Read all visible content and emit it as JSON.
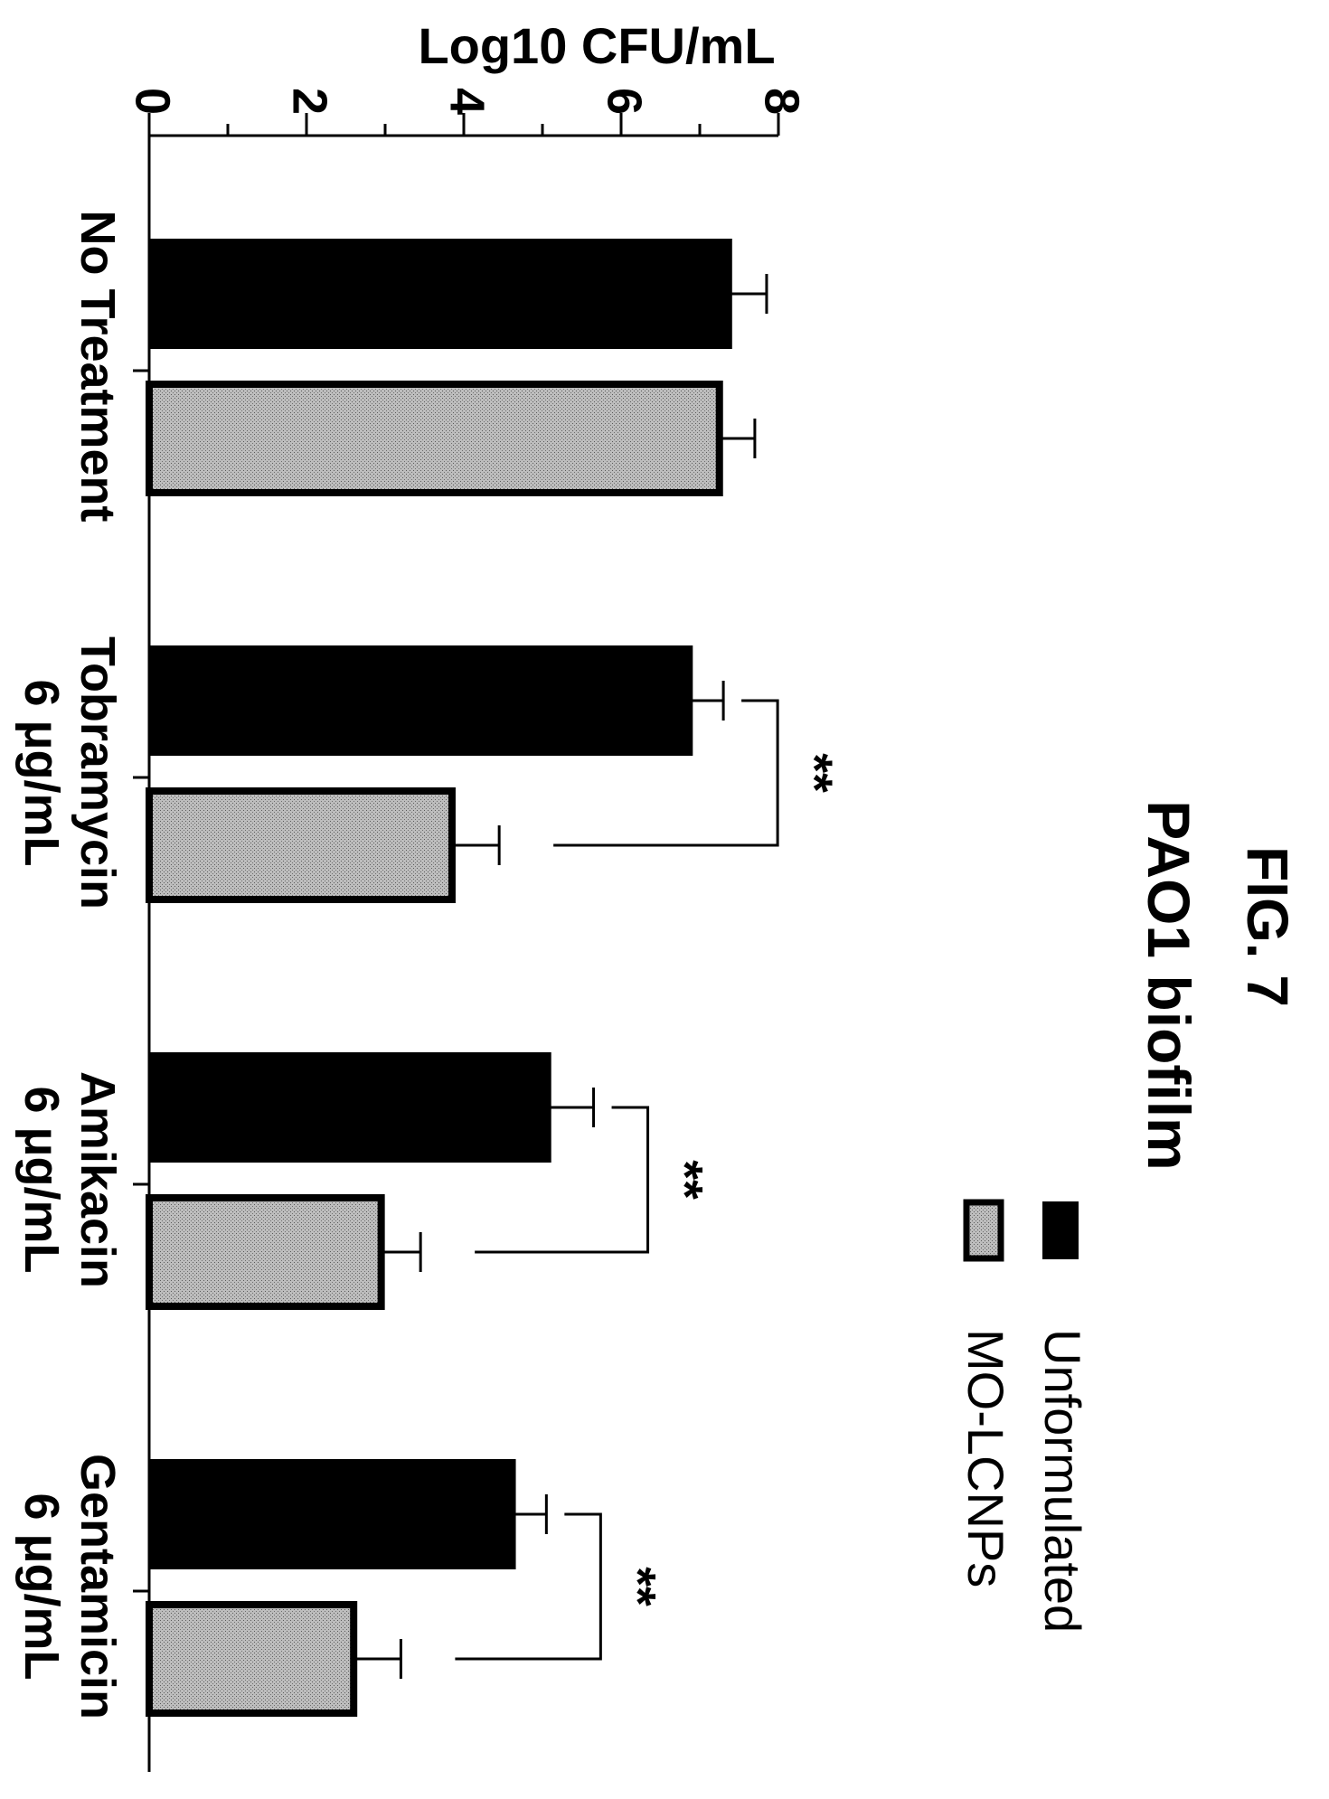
{
  "figure_label": "FIG. 7",
  "chart_data": {
    "type": "bar",
    "title": "PAO1 biofilm",
    "ylabel": "Log10 CFU/mL",
    "xlabel": "",
    "ylim": [
      0,
      8
    ],
    "yticks": [
      0,
      2,
      4,
      6,
      8
    ],
    "grid": false,
    "legend_position": "top-right",
    "categories": [
      [
        "No Treatment"
      ],
      [
        "Tobramycin",
        "6 μg/mL"
      ],
      [
        "Amikacin",
        "6 μg/mL"
      ],
      [
        "Gentamicin",
        "6 μg/mL"
      ]
    ],
    "series": [
      {
        "name": "Unformulated",
        "values": [
          7.4,
          6.9,
          5.1,
          4.65
        ],
        "errors": [
          0.45,
          0.4,
          0.55,
          0.4
        ],
        "color": "#000000",
        "pattern": "solid"
      },
      {
        "name": "MO-LCNPs",
        "values": [
          7.25,
          3.85,
          2.95,
          2.6
        ],
        "errors": [
          0.45,
          0.6,
          0.5,
          0.6
        ],
        "color": "#b0b0b0",
        "pattern": "stipple"
      }
    ],
    "significance": [
      {
        "category": 1,
        "label": "**"
      },
      {
        "category": 2,
        "label": "**"
      },
      {
        "category": 3,
        "label": "**"
      }
    ]
  },
  "colors": {
    "ink": "#000000",
    "fill_gray": "#b0b0b0"
  }
}
